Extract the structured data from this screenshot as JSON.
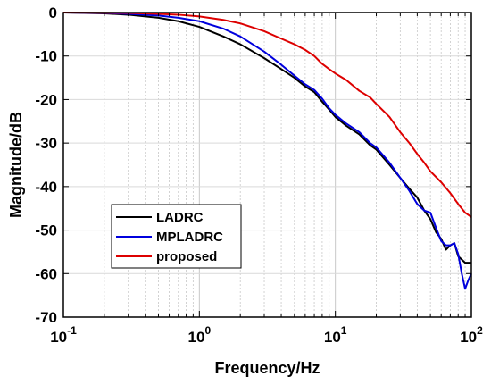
{
  "chart_data": {
    "type": "line",
    "title": "",
    "xlabel": "Frequency/Hz",
    "ylabel": "Magnitude/dB",
    "xscale": "log",
    "xlim": [
      0.1,
      100
    ],
    "ylim": [
      -70,
      0
    ],
    "grid": true,
    "legend_position": "lower-left",
    "x_ticks": [
      {
        "base": "10",
        "exp": "-1",
        "value": 0.1
      },
      {
        "base": "10",
        "exp": "0",
        "value": 1
      },
      {
        "base": "10",
        "exp": "1",
        "value": 10
      },
      {
        "base": "10",
        "exp": "2",
        "value": 100
      }
    ],
    "y_ticks": [
      {
        "label": "0",
        "value": 0
      },
      {
        "label": "-10",
        "value": -10
      },
      {
        "label": "-20",
        "value": -20
      },
      {
        "label": "-30",
        "value": -30
      },
      {
        "label": "-40",
        "value": -40
      },
      {
        "label": "-50",
        "value": -50
      },
      {
        "label": "-60",
        "value": -60
      },
      {
        "label": "-70",
        "value": -70
      }
    ],
    "series": [
      {
        "name": "LADRC",
        "color": "#000000",
        "x": [
          0.1,
          0.2,
          0.3,
          0.5,
          0.7,
          1,
          1.5,
          2,
          3,
          4,
          5,
          6,
          7,
          8,
          9,
          10,
          12,
          15,
          18,
          20,
          25,
          30,
          35,
          40,
          45,
          50,
          55,
          60,
          65,
          70,
          75,
          80,
          90,
          100
        ],
        "y": [
          0,
          -0.2,
          -0.5,
          -1.2,
          -2.0,
          -3.3,
          -5.5,
          -7.3,
          -10.5,
          -13.0,
          -15.0,
          -17.0,
          -18.3,
          -20.5,
          -22.3,
          -24.0,
          -26.0,
          -28.0,
          -30.5,
          -31.5,
          -35.0,
          -38.0,
          -40.5,
          -42.5,
          -45.5,
          -47.5,
          -50.5,
          -52.0,
          -54.5,
          -53.5,
          -53.0,
          -56.0,
          -57.5,
          -57.5
        ]
      },
      {
        "name": "MPLADRC",
        "color": "#0000dd",
        "x": [
          0.1,
          0.2,
          0.3,
          0.5,
          0.7,
          1,
          1.5,
          2,
          3,
          4,
          5,
          6,
          7,
          8,
          9,
          10,
          12,
          15,
          18,
          20,
          25,
          30,
          35,
          40,
          45,
          50,
          55,
          60,
          65,
          70,
          75,
          80,
          85,
          90,
          95,
          100
        ],
        "y": [
          0,
          -0.1,
          -0.3,
          -0.7,
          -1.2,
          -2.0,
          -3.7,
          -5.5,
          -9.0,
          -12.0,
          -14.5,
          -16.5,
          -17.8,
          -19.8,
          -22.0,
          -23.5,
          -25.5,
          -27.5,
          -30.0,
          -31.0,
          -34.5,
          -38.0,
          -41.0,
          -44.0,
          -45.5,
          -46.0,
          -49.5,
          -52.5,
          -53.5,
          -53.5,
          -53.0,
          -55.5,
          -60.0,
          -63.5,
          -61.5,
          -60.0
        ]
      },
      {
        "name": "proposed",
        "color": "#dd0000",
        "x": [
          0.1,
          0.2,
          0.3,
          0.5,
          0.7,
          1,
          1.5,
          2,
          3,
          4,
          5,
          6,
          7,
          8,
          9,
          10,
          12,
          15,
          18,
          20,
          25,
          30,
          35,
          40,
          45,
          50,
          60,
          70,
          80,
          90,
          100
        ],
        "y": [
          0,
          -0.05,
          -0.1,
          -0.3,
          -0.5,
          -0.9,
          -1.7,
          -2.5,
          -4.3,
          -6.0,
          -7.3,
          -8.6,
          -10.0,
          -11.8,
          -13.0,
          -14.0,
          -15.5,
          -18.0,
          -19.5,
          -21.0,
          -24.0,
          -27.5,
          -30.0,
          -32.5,
          -34.5,
          -36.5,
          -39.0,
          -41.5,
          -44.0,
          -46.0,
          -47.0
        ]
      }
    ]
  }
}
